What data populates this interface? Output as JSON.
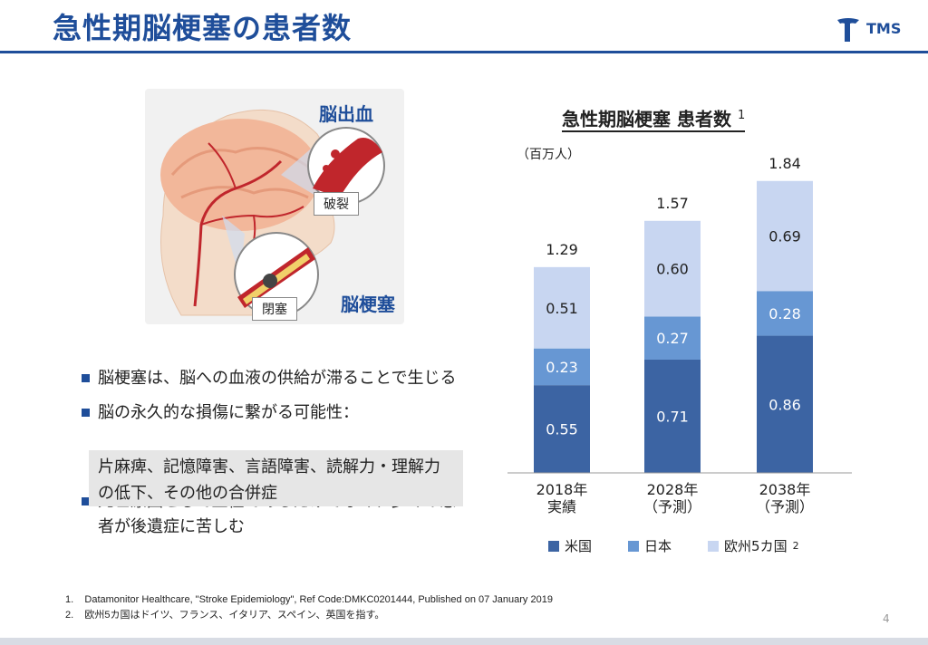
{
  "header": {
    "title": "急性期脳梗塞の患者数",
    "logo_text": "TMS"
  },
  "illustration": {
    "label_hemorrhage": "脳出血",
    "label_rupture": "破裂",
    "label_occlusion": "閉塞",
    "label_infarction": "脳梗塞"
  },
  "bullets": [
    "脳梗塞は、脳への血液の供給が滞ることで生じる",
    "脳の永久的な損傷に繋がる可能性：",
    "死亡原因として上位であるだけでなく、多くの患者が後遺症に苦しむ"
  ],
  "sub_box": "片麻痺、記憶障害、言語障害、読解力・理解力の低下、その他の合併症",
  "chart_data": {
    "type": "bar",
    "stacked": true,
    "title": "急性期脳梗塞 患者数",
    "title_note": "1",
    "unit": "（百万人）",
    "categories": [
      "2018年\n実績",
      "2028年\n（予測）",
      "2038年\n（予測）"
    ],
    "series": [
      {
        "name": "米国",
        "values": [
          0.55,
          0.71,
          0.86
        ],
        "color": "#3c64a3"
      },
      {
        "name": "日本",
        "values": [
          0.23,
          0.27,
          0.28
        ],
        "color": "#6797d3"
      },
      {
        "name": "欧州5カ国",
        "values": [
          0.51,
          0.6,
          0.69
        ],
        "color": "#c8d6f1"
      }
    ],
    "totals": [
      1.29,
      1.57,
      1.84
    ],
    "legend_note": "2",
    "ylim": [
      0,
      1.84
    ],
    "grid": false,
    "legend_position": "bottom"
  },
  "footnotes": [
    "1.    Datamonitor Healthcare, \"Stroke Epidemiology\", Ref Code:DMKC0201444, Published on 07 January 2019",
    "2.    欧州5カ国はドイツ、フランス、イタリア、スペイン、英国を指す。"
  ],
  "page_number": "4"
}
